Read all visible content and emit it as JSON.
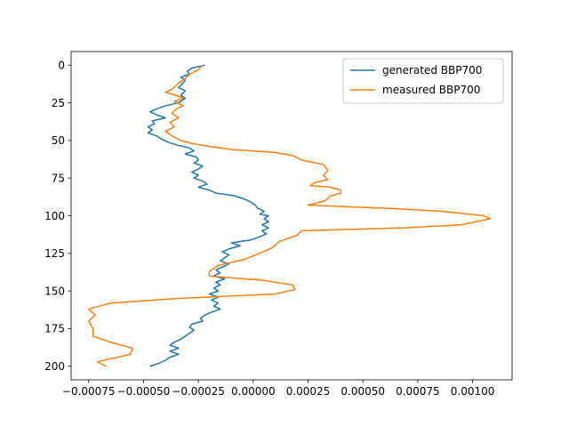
{
  "chart_data": {
    "type": "line",
    "title": "",
    "xlabel": "",
    "ylabel": "",
    "y_inverted": true,
    "xlim": [
      -0.00083,
      0.00118
    ],
    "ylim": [
      209,
      -9
    ],
    "x_ticks": [
      -0.00075,
      -0.0005,
      -0.00025,
      0.0,
      0.00025,
      0.0005,
      0.00075,
      0.001
    ],
    "x_tick_labels": [
      "−0.00075",
      "−0.00050",
      "−0.00025",
      "0.00000",
      "0.00025",
      "0.00050",
      "0.00075",
      "0.00100"
    ],
    "y_ticks": [
      0,
      25,
      50,
      75,
      100,
      125,
      150,
      175,
      200
    ],
    "y_tick_labels": [
      "0",
      "25",
      "50",
      "75",
      "100",
      "125",
      "150",
      "175",
      "200"
    ],
    "grid": false,
    "legend_position": "top-right",
    "series": [
      {
        "name": "generated BBP700",
        "color": "#1f77b4",
        "points": [
          [
            -0.00022,
            0
          ],
          [
            -0.00028,
            2
          ],
          [
            -0.0003,
            4
          ],
          [
            -0.00029,
            6
          ],
          [
            -0.00033,
            8
          ],
          [
            -0.00031,
            10
          ],
          [
            -0.00032,
            12
          ],
          [
            -0.00034,
            15
          ],
          [
            -0.00031,
            17
          ],
          [
            -0.00033,
            20
          ],
          [
            -0.00031,
            22
          ],
          [
            -0.00034,
            25
          ],
          [
            -0.0004,
            27
          ],
          [
            -0.00044,
            29
          ],
          [
            -0.00047,
            31
          ],
          [
            -0.00044,
            33
          ],
          [
            -0.0004,
            35
          ],
          [
            -0.00046,
            37
          ],
          [
            -0.00045,
            39
          ],
          [
            -0.00048,
            41
          ],
          [
            -0.00046,
            43
          ],
          [
            -0.00048,
            45
          ],
          [
            -0.00044,
            47
          ],
          [
            -0.00042,
            49
          ],
          [
            -0.00039,
            51
          ],
          [
            -0.00035,
            53
          ],
          [
            -0.00029,
            55
          ],
          [
            -0.00027,
            57
          ],
          [
            -0.00031,
            59
          ],
          [
            -0.00026,
            61
          ],
          [
            -0.00025,
            63
          ],
          [
            -0.00027,
            65
          ],
          [
            -0.00023,
            67
          ],
          [
            -0.00025,
            69
          ],
          [
            -0.00028,
            71
          ],
          [
            -0.00025,
            73
          ],
          [
            -0.00027,
            75
          ],
          [
            -0.00023,
            77
          ],
          [
            -0.00021,
            79
          ],
          [
            -0.00025,
            81
          ],
          [
            -0.0002,
            83
          ],
          [
            -0.00017,
            85
          ],
          [
            -0.00012,
            86
          ],
          [
            -8e-05,
            87
          ],
          [
            -4e-05,
            89
          ],
          [
            -1e-05,
            91
          ],
          [
            1e-05,
            93
          ],
          [
            2e-05,
            95
          ],
          [
            5e-05,
            97
          ],
          [
            3e-05,
            99
          ],
          [
            7e-05,
            100
          ],
          [
            5e-05,
            102
          ],
          [
            7e-05,
            104
          ],
          [
            4e-05,
            106
          ],
          [
            7e-05,
            108
          ],
          [
            4e-05,
            110
          ],
          [
            6e-05,
            112
          ],
          [
            3e-05,
            114
          ],
          [
            -1e-05,
            116
          ],
          [
            -0.0001,
            118
          ],
          [
            -6e-05,
            120
          ],
          [
            -0.00011,
            122
          ],
          [
            -0.00014,
            124
          ],
          [
            -0.00011,
            126
          ],
          [
            -0.00013,
            128
          ],
          [
            -0.00015,
            130
          ],
          [
            -0.00011,
            132
          ],
          [
            -0.00014,
            134
          ],
          [
            -0.00017,
            136
          ],
          [
            -0.00015,
            138
          ],
          [
            -0.00018,
            140
          ],
          [
            -0.00013,
            142
          ],
          [
            -0.00017,
            144
          ],
          [
            -0.00015,
            146
          ],
          [
            -0.00018,
            148
          ],
          [
            -0.00016,
            150
          ],
          [
            -0.0002,
            152
          ],
          [
            -0.00016,
            154
          ],
          [
            -0.00019,
            156
          ],
          [
            -0.00016,
            158
          ],
          [
            -0.00018,
            160
          ],
          [
            -0.00015,
            162
          ],
          [
            -0.00019,
            164
          ],
          [
            -0.00022,
            166
          ],
          [
            -0.00024,
            168
          ],
          [
            -0.00023,
            170
          ],
          [
            -0.00028,
            172
          ],
          [
            -0.00029,
            174
          ],
          [
            -0.00027,
            176
          ],
          [
            -0.00029,
            178
          ],
          [
            -0.00031,
            180
          ],
          [
            -0.00033,
            182
          ],
          [
            -0.00036,
            184
          ],
          [
            -0.00038,
            186
          ],
          [
            -0.00034,
            188
          ],
          [
            -0.00038,
            190
          ],
          [
            -0.00034,
            192
          ],
          [
            -0.00038,
            194
          ],
          [
            -0.0004,
            196
          ],
          [
            -0.00043,
            198
          ],
          [
            -0.00047,
            200
          ]
        ]
      },
      {
        "name": "measured BBP700",
        "color": "#ff7f0e",
        "points": [
          [
            -0.00023,
            0
          ],
          [
            -0.00025,
            3
          ],
          [
            -0.00029,
            6
          ],
          [
            -0.00031,
            9
          ],
          [
            -0.00034,
            12
          ],
          [
            -0.00037,
            16
          ],
          [
            -0.0004,
            18
          ],
          [
            -0.00035,
            20
          ],
          [
            -0.00032,
            22
          ],
          [
            -0.00036,
            24
          ],
          [
            -0.00032,
            27
          ],
          [
            -0.00035,
            29
          ],
          [
            -0.00037,
            32
          ],
          [
            -0.00034,
            35
          ],
          [
            -0.00038,
            38
          ],
          [
            -0.00036,
            41
          ],
          [
            -0.0004,
            44
          ],
          [
            -0.00037,
            47
          ],
          [
            -0.00033,
            50
          ],
          [
            -0.00028,
            52
          ],
          [
            -0.0002,
            54
          ],
          [
            -0.0001,
            56
          ],
          [
            0.0001,
            58
          ],
          [
            0.00018,
            60
          ],
          [
            0.00022,
            63
          ],
          [
            0.00032,
            66
          ],
          [
            0.00034,
            70
          ],
          [
            0.00032,
            73
          ],
          [
            0.00034,
            76
          ],
          [
            0.00028,
            78
          ],
          [
            0.00026,
            80
          ],
          [
            0.00035,
            81
          ],
          [
            0.0004,
            83
          ],
          [
            0.0004,
            85
          ],
          [
            0.00035,
            87
          ],
          [
            0.00033,
            90
          ],
          [
            0.00025,
            93
          ],
          [
            0.0006,
            95
          ],
          [
            0.00085,
            97
          ],
          [
            0.00105,
            100
          ],
          [
            0.00108,
            102
          ],
          [
            0.00095,
            106
          ],
          [
            0.0007,
            108
          ],
          [
            0.00022,
            110
          ],
          [
            0.0002,
            113
          ],
          [
            0.00012,
            117
          ],
          [
            9e-05,
            121
          ],
          [
            3e-05,
            125
          ],
          [
            -4e-05,
            129
          ],
          [
            -0.00016,
            133
          ],
          [
            -0.0002,
            137
          ],
          [
            -0.0002,
            140
          ],
          [
            5e-05,
            143
          ],
          [
            0.00018,
            146
          ],
          [
            0.00019,
            149
          ],
          [
            0.0001,
            152
          ],
          [
            -0.00035,
            155
          ],
          [
            -0.00065,
            158
          ],
          [
            -0.00075,
            162
          ],
          [
            -0.00072,
            166
          ],
          [
            -0.00075,
            170
          ],
          [
            -0.00073,
            175
          ],
          [
            -0.00073,
            180
          ],
          [
            -0.00065,
            184
          ],
          [
            -0.00055,
            188
          ],
          [
            -0.00056,
            192
          ],
          [
            -0.00065,
            195
          ],
          [
            -0.00071,
            197
          ],
          [
            -0.00067,
            200
          ]
        ]
      }
    ]
  }
}
